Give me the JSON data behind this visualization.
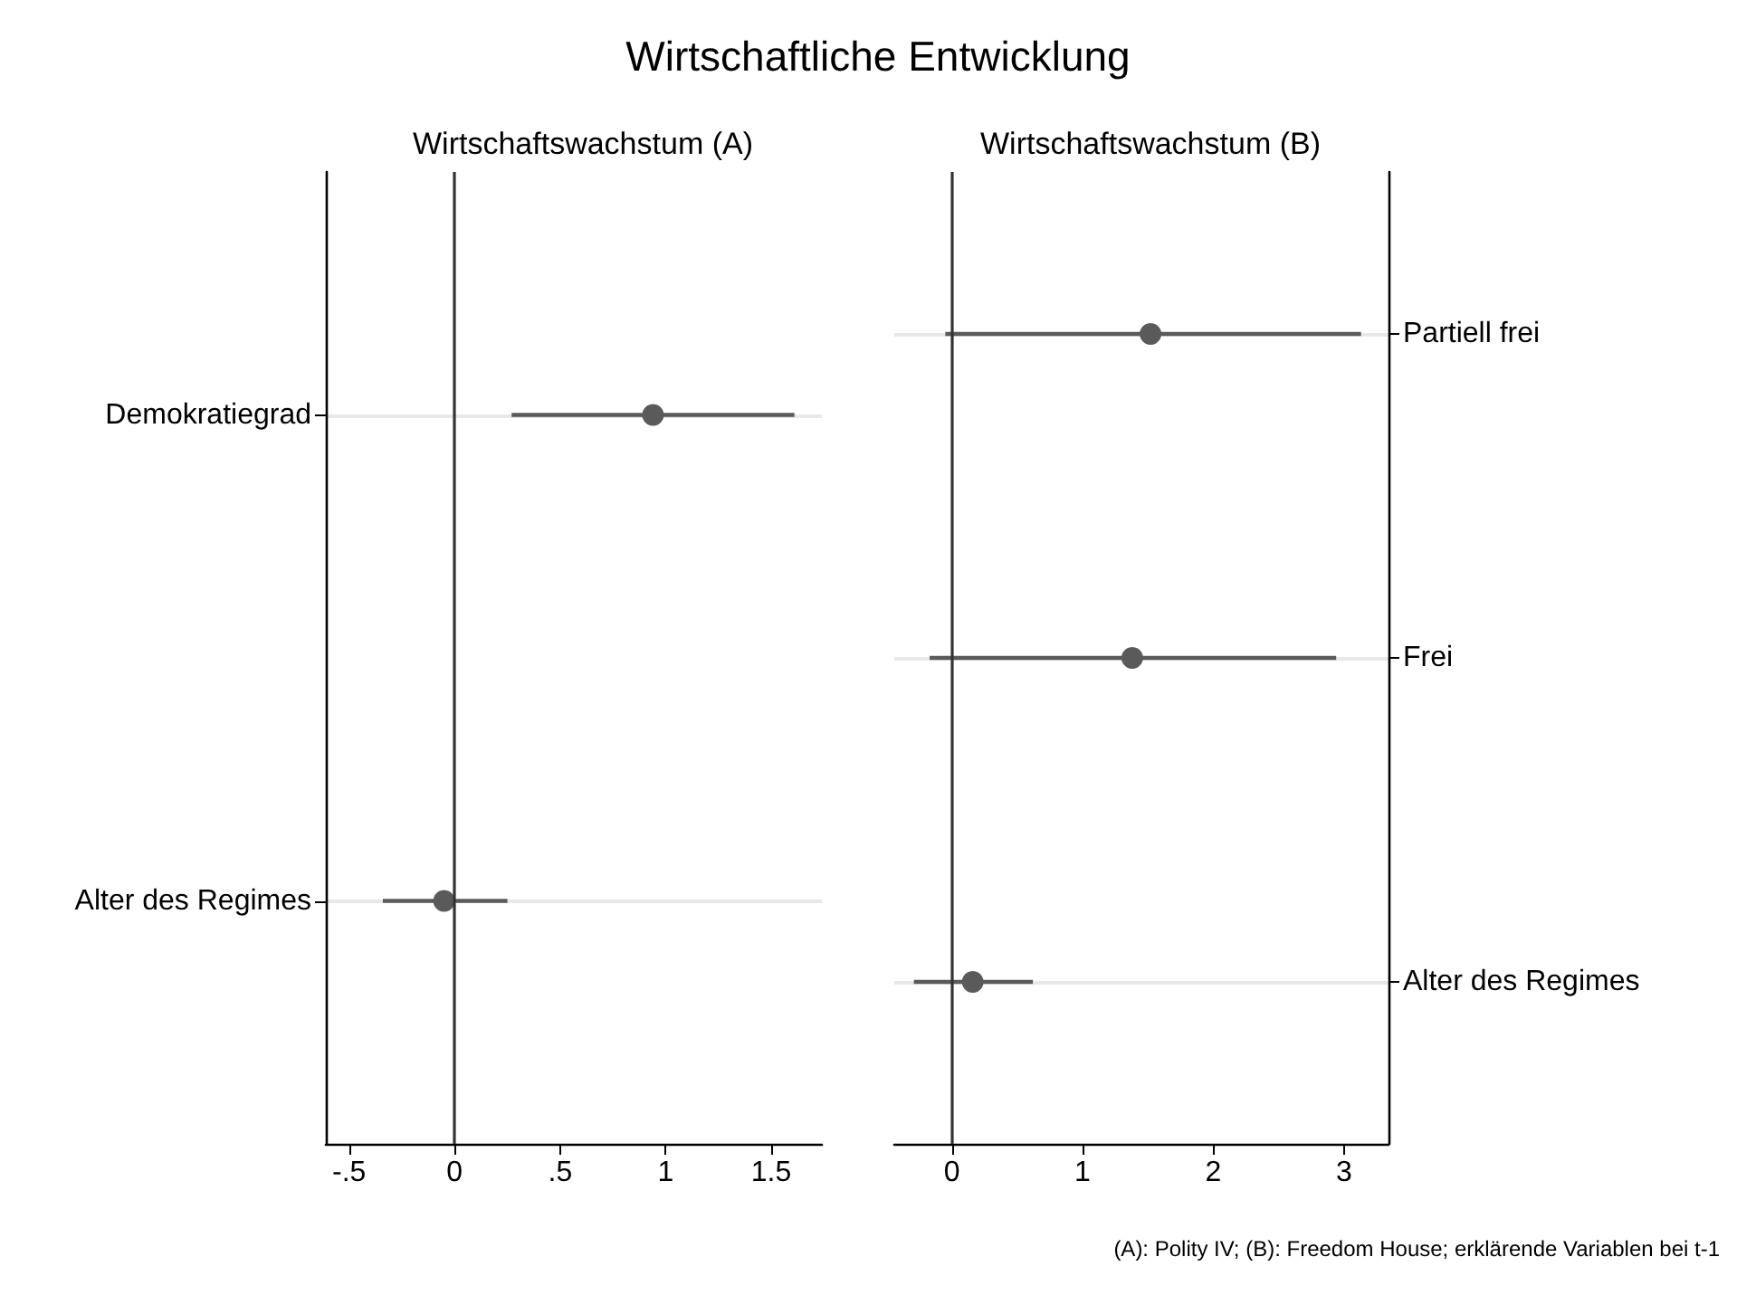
{
  "chart_data": [
    {
      "type": "scatter",
      "title": "Wirtschaftliche Entwicklung",
      "subtitle": "Wirtschaftswachstum (A)",
      "orientation": "horizontal",
      "categories": [
        "Demokratiegrad",
        "Alter des Regimes"
      ],
      "series": [
        {
          "color": "#5a5a5a",
          "values": [
            0.94,
            -0.05
          ],
          "errors": [
            [
              0.27,
              1.61
            ],
            [
              -0.34,
              0.25
            ]
          ]
        }
      ],
      "xlim": [
        -0.61,
        1.74
      ],
      "xticks": [
        {
          "value": -0.5,
          "label": "-.5"
        },
        0,
        {
          "value": 0.5,
          "label": ".5"
        },
        1,
        1.5
      ],
      "grid": "y",
      "marker": "circle",
      "ref_lines": [
        {
          "axis": "x",
          "value": 0,
          "color": "#333333"
        }
      ]
    },
    {
      "type": "scatter",
      "subtitle": "Wirtschaftswachstum (B)",
      "orientation": "horizontal",
      "categories": [
        "Partiell frei",
        "Frei",
        "Alter des Regimes"
      ],
      "series": [
        {
          "color": "#5a5a5a",
          "values": [
            1.52,
            1.38,
            0.16
          ],
          "errors": [
            [
              -0.05,
              3.13
            ],
            [
              -0.17,
              2.94
            ],
            [
              -0.29,
              0.62
            ]
          ]
        }
      ],
      "xlim": [
        -0.44,
        3.34
      ],
      "xticks": [
        0,
        1,
        2,
        3
      ],
      "grid": "y",
      "marker": "circle",
      "ref_lines": [
        {
          "axis": "x",
          "value": 0,
          "color": "#333333"
        }
      ],
      "annotations": [
        "(A): Polity IV; (B): Freedom House; erklärende Variablen bei t-1"
      ]
    }
  ]
}
